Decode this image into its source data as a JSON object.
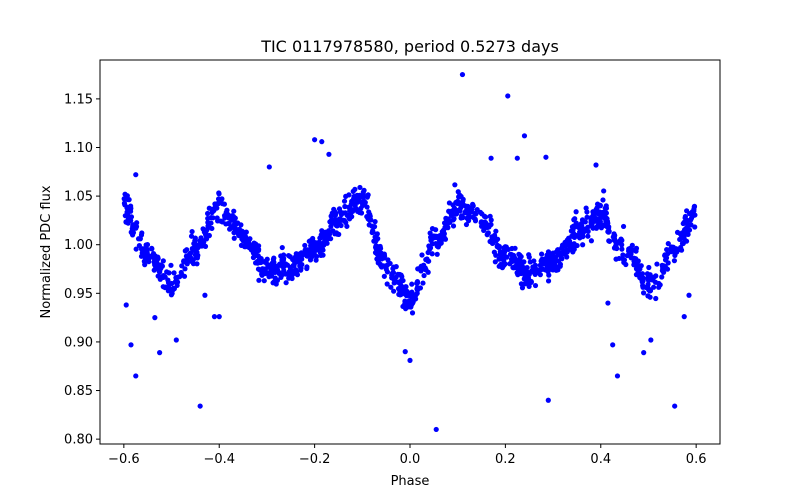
{
  "chart_data": {
    "type": "scatter",
    "title": "TIC 0117978580, period 0.5273 days",
    "xlabel": "Phase",
    "ylabel": "Normalized PDC flux",
    "xlim": [
      -0.65,
      0.65
    ],
    "ylim": [
      0.795,
      1.19
    ],
    "xticks": [
      -0.6,
      -0.4,
      -0.2,
      0.0,
      0.2,
      0.4,
      0.6
    ],
    "xtick_labels": [
      "−0.6",
      "−0.4",
      "−0.2",
      "0.0",
      "0.2",
      "0.4",
      "0.6"
    ],
    "yticks": [
      0.8,
      0.85,
      0.9,
      0.95,
      1.0,
      1.05,
      1.1,
      1.15
    ],
    "ytick_labels": [
      "0.80",
      "0.85",
      "0.90",
      "0.95",
      "1.00",
      "1.05",
      "1.10",
      "1.15"
    ],
    "grid": false,
    "marker_color": "#0000ff",
    "trend": {
      "x": [
        -0.6,
        -0.55,
        -0.5,
        -0.45,
        -0.4,
        -0.35,
        -0.3,
        -0.25,
        -0.2,
        -0.15,
        -0.1,
        -0.05,
        0.0,
        0.05,
        0.1,
        0.15,
        0.2,
        0.25,
        0.3,
        0.35,
        0.4,
        0.45,
        0.5,
        0.55,
        0.6
      ],
      "y": [
        1.035,
        0.99,
        0.962,
        0.995,
        1.04,
        1.01,
        0.975,
        0.975,
        0.995,
        1.025,
        1.045,
        0.975,
        0.945,
        1.0,
        1.04,
        1.025,
        0.985,
        0.97,
        0.98,
        1.01,
        1.03,
        0.995,
        0.96,
        0.99,
        1.035
      ]
    },
    "outliers": [
      [
        -0.595,
        0.938
      ],
      [
        -0.585,
        0.897
      ],
      [
        -0.575,
        0.865
      ],
      [
        -0.575,
        1.072
      ],
      [
        -0.535,
        0.925
      ],
      [
        -0.525,
        0.889
      ],
      [
        -0.49,
        0.902
      ],
      [
        -0.44,
        0.834
      ],
      [
        -0.43,
        0.948
      ],
      [
        -0.41,
        0.926
      ],
      [
        -0.4,
        0.926
      ],
      [
        -0.295,
        1.08
      ],
      [
        -0.2,
        1.108
      ],
      [
        -0.185,
        1.106
      ],
      [
        -0.17,
        1.093
      ],
      [
        -0.01,
        0.89
      ],
      [
        0.0,
        0.881
      ],
      [
        0.055,
        0.81
      ],
      [
        0.11,
        1.175
      ],
      [
        0.17,
        1.089
      ],
      [
        0.205,
        1.153
      ],
      [
        0.225,
        1.089
      ],
      [
        0.24,
        1.112
      ],
      [
        0.285,
        1.09
      ],
      [
        0.29,
        0.84
      ],
      [
        0.39,
        1.082
      ],
      [
        0.415,
        0.94
      ],
      [
        0.425,
        0.897
      ],
      [
        0.435,
        0.865
      ],
      [
        0.49,
        0.889
      ],
      [
        0.505,
        0.902
      ],
      [
        0.555,
        0.834
      ],
      [
        0.575,
        0.926
      ],
      [
        0.585,
        0.948
      ]
    ]
  }
}
